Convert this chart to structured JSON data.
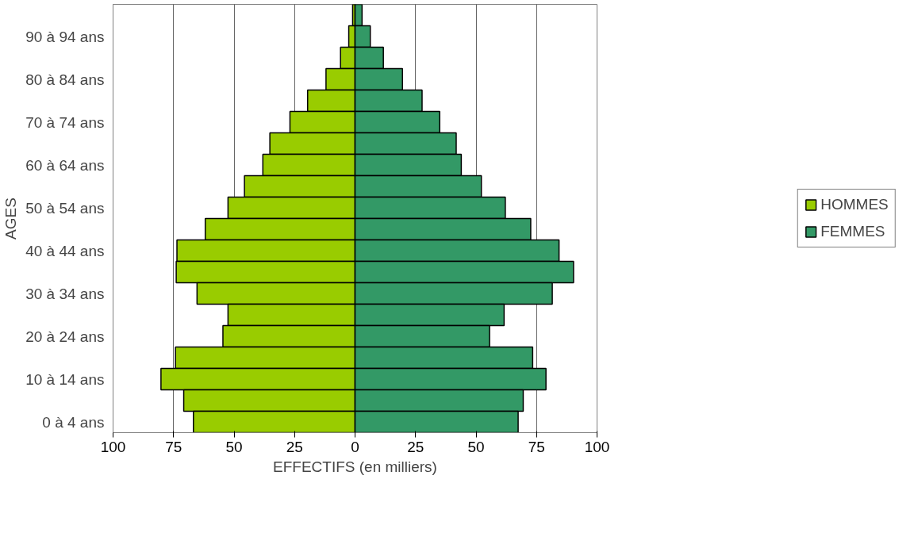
{
  "chart_data": {
    "type": "bar",
    "orientation": "horizontal",
    "xlabel": "EFFECTIFS (en milliers)",
    "ylabel": "AGES",
    "categories": [
      null,
      "90 à 94 ans",
      null,
      "80 à 84 ans",
      null,
      "70 à 74 ans",
      null,
      "60 à 64 ans",
      null,
      "50 à 54 ans",
      null,
      "40 à 44 ans",
      null,
      "30 à 34 ans",
      null,
      "20 à 24 ans",
      null,
      "10 à 14 ans",
      null,
      "0 à 4 ans"
    ],
    "series": [
      {
        "name": "HOMMES",
        "color": "#99cc00",
        "values": [
          -1.0,
          -2.6,
          -6.0,
          -12.0,
          -19.6,
          -26.9,
          -35.2,
          -38.1,
          -45.7,
          -52.5,
          -61.9,
          -73.6,
          -73.9,
          -65.3,
          -52.5,
          -54.6,
          -74.2,
          -80.2,
          -70.8,
          -66.8
        ]
      },
      {
        "name": "FEMMES",
        "color": "#339966",
        "values": [
          2.9,
          6.3,
          11.7,
          19.6,
          27.7,
          35.0,
          41.8,
          43.9,
          52.2,
          62.1,
          72.6,
          84.3,
          90.3,
          81.5,
          61.6,
          55.6,
          73.4,
          78.9,
          69.5,
          67.4
        ]
      }
    ],
    "xlim": [
      -100,
      100
    ],
    "xticks": [
      {
        "value": -100,
        "label": "100"
      },
      {
        "value": -75,
        "label": "75"
      },
      {
        "value": -50,
        "label": "50"
      },
      {
        "value": -25,
        "label": "25"
      },
      0,
      25,
      50,
      75,
      100
    ],
    "grid": "x",
    "legend": "right",
    "stacked": true
  }
}
